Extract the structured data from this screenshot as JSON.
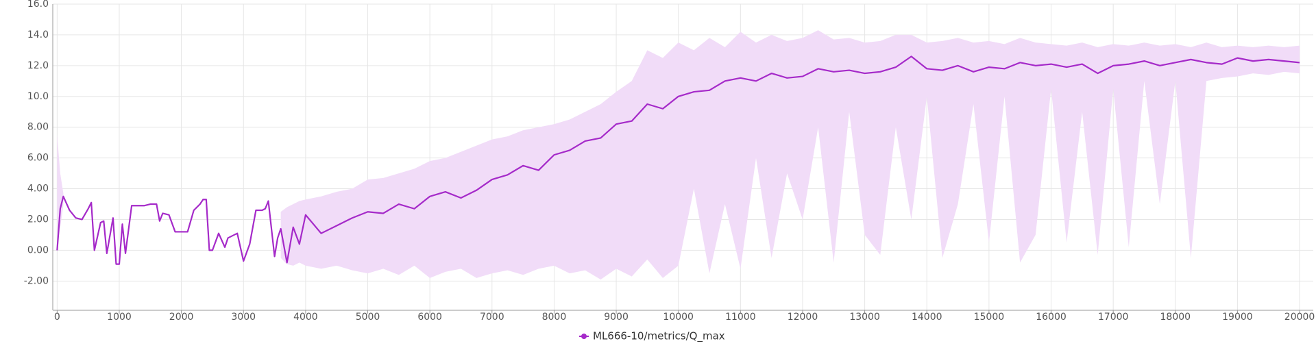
{
  "chart_data": {
    "type": "line",
    "x": [
      0,
      50,
      100,
      200,
      300,
      400,
      500,
      550,
      600,
      700,
      750,
      800,
      900,
      950,
      1000,
      1050,
      1100,
      1200,
      1400,
      1500,
      1600,
      1650,
      1700,
      1800,
      1900,
      2000,
      2100,
      2200,
      2300,
      2350,
      2400,
      2450,
      2500,
      2600,
      2700,
      2750,
      2800,
      2900,
      3000,
      3100,
      3200,
      3300,
      3350,
      3400,
      3500,
      3550,
      3600,
      3700,
      3800,
      3900,
      4000,
      4250,
      4500,
      4750,
      5000,
      5250,
      5500,
      5750,
      6000,
      6250,
      6500,
      6750,
      7000,
      7250,
      7500,
      7750,
      8000,
      8250,
      8500,
      8750,
      9000,
      9250,
      9500,
      9750,
      10000,
      10250,
      10500,
      10750,
      11000,
      11250,
      11500,
      11750,
      12000,
      12250,
      12500,
      12750,
      13000,
      13250,
      13500,
      13750,
      14000,
      14250,
      14500,
      14750,
      15000,
      15250,
      15500,
      15750,
      16000,
      16250,
      16500,
      16750,
      17000,
      17250,
      17500,
      17750,
      18000,
      18250,
      18500,
      18750,
      19000,
      19250,
      19500,
      19750,
      20000
    ],
    "series": [
      {
        "name": "ML666-10/metrics/Q_max",
        "color": "#a52ac9",
        "band_color": "#f1dcf8",
        "values": [
          0.0,
          2.7,
          3.5,
          2.6,
          2.1,
          2.0,
          2.7,
          3.1,
          0.0,
          1.8,
          1.9,
          -0.2,
          2.1,
          -0.9,
          -0.9,
          1.7,
          -0.2,
          2.9,
          2.9,
          3.0,
          3.0,
          1.9,
          2.4,
          2.3,
          1.2,
          1.2,
          1.2,
          2.6,
          3.0,
          3.3,
          3.3,
          0.0,
          0.0,
          1.1,
          0.2,
          0.8,
          0.9,
          1.1,
          -0.7,
          0.4,
          2.6,
          2.6,
          2.7,
          3.2,
          -0.4,
          0.8,
          1.4,
          -0.8,
          1.5,
          0.4,
          2.3,
          1.1,
          1.6,
          2.1,
          2.5,
          2.4,
          3.0,
          2.7,
          3.5,
          3.8,
          3.4,
          3.9,
          4.6,
          4.9,
          5.5,
          5.2,
          6.2,
          6.5,
          7.1,
          7.3,
          8.2,
          8.4,
          9.5,
          9.2,
          10.0,
          10.3,
          10.4,
          11.0,
          11.2,
          11.0,
          11.5,
          11.2,
          11.3,
          11.8,
          11.6,
          11.7,
          11.5,
          11.6,
          11.9,
          12.6,
          11.8,
          11.7,
          12.0,
          11.6,
          11.9,
          11.8,
          12.2,
          12.0,
          12.1,
          11.9,
          12.1,
          11.5,
          12.0,
          12.1,
          12.3,
          12.0,
          12.2,
          12.4,
          12.2,
          12.1,
          12.5,
          12.3,
          12.4,
          12.3,
          12.2
        ],
        "band_lower": [
          0.0,
          1.5,
          2.9,
          null,
          null,
          null,
          null,
          null,
          null,
          null,
          null,
          null,
          null,
          null,
          null,
          null,
          null,
          null,
          null,
          null,
          null,
          null,
          null,
          null,
          null,
          null,
          null,
          null,
          null,
          null,
          null,
          null,
          null,
          null,
          null,
          null,
          null,
          null,
          null,
          null,
          null,
          null,
          null,
          null,
          null,
          null,
          -0.5,
          -0.9,
          -1.0,
          -0.8,
          -1.0,
          -1.2,
          -1.0,
          -1.3,
          -1.5,
          -1.2,
          -1.6,
          -1.0,
          -1.8,
          -1.4,
          -1.2,
          -1.8,
          -1.5,
          -1.3,
          -1.6,
          -1.2,
          -1.0,
          -1.5,
          -1.3,
          -1.9,
          -1.2,
          -1.7,
          -0.6,
          -1.8,
          -1.0,
          4.0,
          -1.5,
          3.0,
          -1.2,
          6.0,
          -0.5,
          5.0,
          2.0,
          8.0,
          -0.8,
          9.0,
          1.0,
          -0.3,
          8.0,
          2.0,
          10.0,
          -0.5,
          3.0,
          9.5,
          0.5,
          10.0,
          -0.8,
          1.0,
          10.5,
          0.5,
          9.0,
          -0.3,
          10.5,
          0.2,
          11.0,
          3.0,
          11.0,
          -0.5,
          11.0,
          11.2,
          11.3,
          11.5,
          11.4,
          11.6,
          11.5
        ],
        "band_upper": [
          7.5,
          5.0,
          3.7,
          null,
          null,
          null,
          null,
          null,
          null,
          null,
          null,
          null,
          null,
          null,
          null,
          null,
          null,
          null,
          null,
          null,
          null,
          null,
          null,
          null,
          null,
          null,
          null,
          null,
          null,
          null,
          null,
          null,
          null,
          null,
          null,
          null,
          null,
          null,
          null,
          null,
          null,
          null,
          null,
          null,
          null,
          null,
          2.5,
          2.8,
          3.0,
          3.2,
          3.3,
          3.5,
          3.8,
          4.0,
          4.6,
          4.7,
          5.0,
          5.3,
          5.8,
          6.0,
          6.4,
          6.8,
          7.2,
          7.4,
          7.8,
          8.0,
          8.2,
          8.5,
          9.0,
          9.5,
          10.3,
          11.0,
          13.0,
          12.5,
          13.5,
          13.0,
          13.8,
          13.2,
          14.2,
          13.5,
          14.0,
          13.6,
          13.8,
          14.3,
          13.7,
          13.8,
          13.5,
          13.6,
          14.0,
          14.0,
          13.5,
          13.6,
          13.8,
          13.5,
          13.6,
          13.4,
          13.8,
          13.5,
          13.4,
          13.3,
          13.5,
          13.2,
          13.4,
          13.3,
          13.5,
          13.3,
          13.4,
          13.2,
          13.5,
          13.2,
          13.3,
          13.2,
          13.3,
          13.2,
          13.3
        ]
      }
    ],
    "xlim": [
      -70,
      20220
    ],
    "ylim": [
      -3.9,
      16
    ],
    "xticks": [
      0,
      1000,
      2000,
      3000,
      4000,
      5000,
      6000,
      7000,
      8000,
      9000,
      10000,
      11000,
      12000,
      13000,
      14000,
      15000,
      16000,
      17000,
      18000,
      19000,
      20000
    ],
    "yticks": [
      {
        "value": -2,
        "label": "-2.00"
      },
      {
        "value": 0,
        "label": "0.00"
      },
      {
        "value": 2,
        "label": "2.00"
      },
      {
        "value": 4,
        "label": "4.00"
      },
      {
        "value": 6,
        "label": "6.00"
      },
      {
        "value": 8,
        "label": "8.00"
      },
      {
        "value": 10,
        "label": "10.0"
      },
      {
        "value": 12,
        "label": "12.0"
      },
      {
        "value": 14,
        "label": "14.0"
      },
      {
        "value": 16,
        "label": "16.0"
      }
    ],
    "grid": true
  }
}
